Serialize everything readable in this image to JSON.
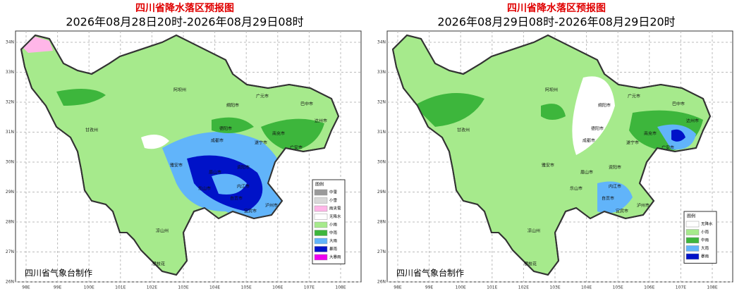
{
  "panels": [
    {
      "title": "四川省降水落区预报图",
      "subtitle": "2026年08月28日20时-2026年08月29日08时",
      "legend_title": "图例",
      "footer": "四川省气象台制作",
      "legend": [
        {
          "label": "中雪",
          "color": "#9a9a9a"
        },
        {
          "label": "小雪",
          "color": "#d9d9d9"
        },
        {
          "label": "雨夹雪",
          "color": "#ffb6e8"
        },
        {
          "label": "无降水",
          "color": "#ffffff"
        },
        {
          "label": "小雨",
          "color": "#a6ea8c"
        },
        {
          "label": "中雨",
          "color": "#3db63c"
        },
        {
          "label": "大雨",
          "color": "#61b4fa"
        },
        {
          "label": "暴雨",
          "color": "#0012c8"
        },
        {
          "label": "大暴雨",
          "color": "#f000f0"
        }
      ]
    },
    {
      "title": "四川省降水落区预报图",
      "subtitle": "2026年08月29日08时-2026年08月29日20时",
      "legend_title": "图例",
      "footer": "四川省气象台制作",
      "legend": [
        {
          "label": "无降水",
          "color": "#ffffff"
        },
        {
          "label": "小雨",
          "color": "#a6ea8c"
        },
        {
          "label": "中雨",
          "color": "#3db63c"
        },
        {
          "label": "大雨",
          "color": "#61b4fa"
        },
        {
          "label": "暴雨",
          "color": "#0012c8"
        }
      ]
    }
  ],
  "lat_labels": [
    "34N",
    "33N",
    "32N",
    "31N",
    "30N",
    "29N",
    "28N",
    "27N",
    "26N"
  ],
  "lon_labels": [
    "98E",
    "99E",
    "100E",
    "101E",
    "102E",
    "103E",
    "104E",
    "105E",
    "106E",
    "107E",
    "108E"
  ],
  "cities": [
    "阿坝州",
    "绵阳市",
    "广元市",
    "巴中市",
    "达州市",
    "南充市",
    "德阳市",
    "成都市",
    "遂宁市",
    "广安市",
    "甘孜州",
    "雅安市",
    "眉山市",
    "资阳市",
    "内江市",
    "乐山市",
    "自贡市",
    "宜宾市",
    "泸州市",
    "凉山州",
    "攀枝花"
  ]
}
